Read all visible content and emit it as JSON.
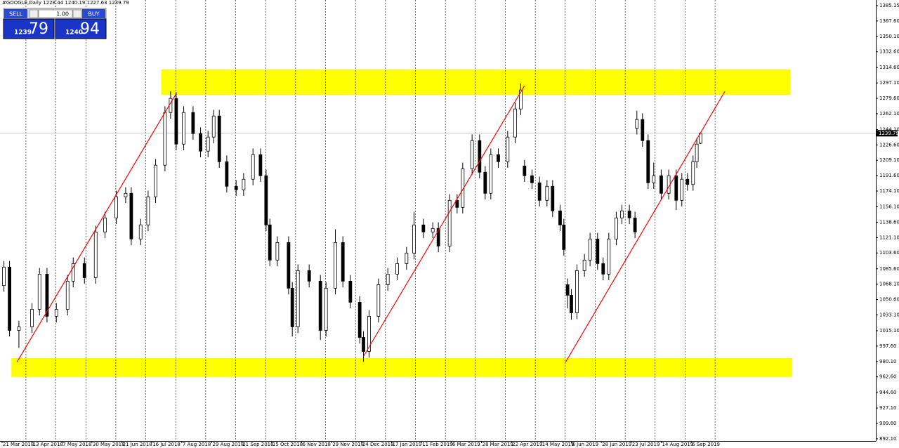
{
  "chart_data": {
    "type": "candlestick",
    "title": "#GOOGLE,Daily",
    "trade_panel": {
      "sell_label": "SELL",
      "buy_label": "BUY",
      "lots": "1.00",
      "sell_price_main": "1239",
      "sell_price_pips": "79",
      "buy_price_main": "1240",
      "buy_price_pips": "94"
    },
    "xlim": [
      -1.1,
      466.6
    ],
    "ylim": [
      888.0,
      1391.5
    ],
    "xticks": [
      {
        "value": 0,
        "label": "21 Mar 2018"
      },
      {
        "value": 16,
        "label": "13 Apr 2018"
      },
      {
        "value": 32,
        "label": "7 May 2018"
      },
      {
        "value": 48,
        "label": "30 May 2018"
      },
      {
        "value": 64,
        "label": "21 Jun 2018"
      },
      {
        "value": 80,
        "label": "16 Jul 2018"
      },
      {
        "value": 96,
        "label": "7 Aug 2018"
      },
      {
        "value": 112,
        "label": "29 Aug 2018"
      },
      {
        "value": 128,
        "label": "21 Sep 2018"
      },
      {
        "value": 144,
        "label": "15 Oct 2018"
      },
      {
        "value": 160,
        "label": "6 Nov 2018"
      },
      {
        "value": 176,
        "label": "29 Nov 2018"
      },
      {
        "value": 192,
        "label": "24 Dec 2018"
      },
      {
        "value": 208,
        "label": "17 Jan 2019"
      },
      {
        "value": 224,
        "label": "11 Feb 2019"
      },
      {
        "value": 240,
        "label": "6 Mar 2019"
      },
      {
        "value": 256,
        "label": "28 Mar 2019"
      },
      {
        "value": 272,
        "label": "22 Apr 2019"
      },
      {
        "value": 288,
        "label": "14 May 2019"
      },
      {
        "value": 304,
        "label": "6 Jun 2019"
      },
      {
        "value": 320,
        "label": "28 Jun 2019"
      },
      {
        "value": 336,
        "label": "23 Jul 2019"
      },
      {
        "value": 352,
        "label": "14 Aug 2019"
      },
      {
        "value": 368,
        "label": "6 Sep 2019"
      }
    ],
    "yticks": [
      1385.15,
      {
        "value": 1367.6,
        "label": "1367.60"
      },
      {
        "value": 1350.1,
        "label": "1350.10"
      },
      {
        "value": 1332.6,
        "label": "1332.60"
      },
      {
        "value": 1314.6,
        "label": "1314.60"
      },
      {
        "value": 1297.1,
        "label": "1297.10"
      },
      {
        "value": 1279.6,
        "label": "1279.60"
      },
      {
        "value": 1262.1,
        "label": "1262.10"
      },
      {
        "value": 1244.1,
        "label": "1244.10"
      },
      {
        "value": 1226.6,
        "label": "1226.60"
      },
      {
        "value": 1209.1,
        "label": "1209.10"
      },
      {
        "value": 1191.6,
        "label": "1191.60"
      },
      {
        "value": 1174.1,
        "label": "1174.10"
      },
      {
        "value": 1156.1,
        "label": "1156.10"
      },
      {
        "value": 1138.6,
        "label": "1138.60"
      },
      {
        "value": 1121.1,
        "label": "1121.10"
      },
      {
        "value": 1103.6,
        "label": "1103.60"
      },
      {
        "value": 1085.6,
        "label": "1085.60"
      },
      {
        "value": 1068.1,
        "label": "1068.10"
      },
      {
        "value": 1050.6,
        "label": "1050.60"
      },
      {
        "value": 1033.1,
        "label": "1033.10"
      },
      {
        "value": 1015.1,
        "label": "1015.10"
      },
      {
        "value": 997.6,
        "label": "997.60"
      },
      {
        "value": 980.1,
        "label": "980.10"
      },
      {
        "value": 962.6,
        "label": "962.60"
      },
      {
        "value": 944.6,
        "label": "944.60"
      },
      {
        "value": 927.1,
        "label": "927.10"
      },
      {
        "value": 909.6,
        "label": "909.60"
      },
      {
        "value": 892.1,
        "label": "892.10"
      }
    ],
    "grid": true,
    "up_color": "#ffffff",
    "down_color": "#000000",
    "zone_color": "#ffff00",
    "trendline_color": "#ff0000",
    "zones": [
      {
        "from": 85,
        "to": 421,
        "low": 1283.6,
        "high": 1312.4
      },
      {
        "from": 5,
        "to": 422,
        "low": 962.5,
        "high": 984.0
      }
    ],
    "trendlines": [
      {
        "x1": 8,
        "y1": 979.5,
        "x2": 93,
        "y2": 1285.1
      },
      {
        "x1": 193,
        "y1": 985.9,
        "x2": 279,
        "y2": 1293.9
      },
      {
        "x1": 301,
        "y1": 979.5,
        "x2": 386,
        "y2": 1287.5
      }
    ],
    "candles": [
      {
        "x": 1,
        "open": 1066.5,
        "high": 1094.5,
        "low": 1059.5,
        "close": 1087.5
      },
      {
        "x": 4,
        "open": 1087.5,
        "high": 1094.5,
        "low": 1008.5,
        "close": 1015.5
      },
      {
        "x": 9,
        "open": 1015.5,
        "high": 1026.5,
        "low": 995.5,
        "close": 1019.5
      },
      {
        "x": 16,
        "open": 1019.5,
        "high": 1046.5,
        "low": 1012.5,
        "close": 1039.5
      },
      {
        "x": 20,
        "open": 1039.5,
        "high": 1086.5,
        "low": 1032.5,
        "close": 1079.5
      },
      {
        "x": 24,
        "open": 1079.5,
        "high": 1086.5,
        "low": 1024.5,
        "close": 1031.5
      },
      {
        "x": 29,
        "open": 1031.5,
        "high": 1046.5,
        "low": 1024.5,
        "close": 1039.5
      },
      {
        "x": 35,
        "open": 1039.5,
        "high": 1078.5,
        "low": 1032.5,
        "close": 1071.5
      },
      {
        "x": 38,
        "open": 1071.5,
        "high": 1098.5,
        "low": 1064.5,
        "close": 1091.5
      },
      {
        "x": 44,
        "open": 1091.5,
        "high": 1098.5,
        "low": 1068.5,
        "close": 1075.5
      },
      {
        "x": 50,
        "open": 1075.5,
        "high": 1134.5,
        "low": 1068.5,
        "close": 1127.5
      },
      {
        "x": 55,
        "open": 1127.5,
        "high": 1150.5,
        "low": 1120.5,
        "close": 1143.5
      },
      {
        "x": 61,
        "open": 1143.5,
        "high": 1174.5,
        "low": 1136.5,
        "close": 1167.5
      },
      {
        "x": 66,
        "open": 1167.5,
        "high": 1178.5,
        "low": 1160.5,
        "close": 1171.5
      },
      {
        "x": 69,
        "open": 1171.5,
        "high": 1178.5,
        "low": 1112.5,
        "close": 1119.5
      },
      {
        "x": 74,
        "open": 1119.5,
        "high": 1142.5,
        "low": 1112.5,
        "close": 1135.5
      },
      {
        "x": 78,
        "open": 1135.5,
        "high": 1174.5,
        "low": 1128.5,
        "close": 1167.5
      },
      {
        "x": 82,
        "open": 1167.5,
        "high": 1210.5,
        "low": 1160.5,
        "close": 1203.5
      },
      {
        "x": 87,
        "open": 1203.5,
        "high": 1270.5,
        "low": 1196.5,
        "close": 1263.5
      },
      {
        "x": 90,
        "open": 1263.5,
        "high": 1287.5,
        "low": 1256.5,
        "close": 1279.5
      },
      {
        "x": 93,
        "open": 1279.5,
        "high": 1286.5,
        "low": 1220.5,
        "close": 1227.5
      },
      {
        "x": 97,
        "open": 1227.5,
        "high": 1270.5,
        "low": 1220.5,
        "close": 1263.5
      },
      {
        "x": 102,
        "open": 1263.5,
        "high": 1270.5,
        "low": 1232.5,
        "close": 1239.5
      },
      {
        "x": 106,
        "open": 1239.5,
        "high": 1246.5,
        "low": 1212.5,
        "close": 1219.5
      },
      {
        "x": 110,
        "open": 1219.5,
        "high": 1242.5,
        "low": 1212.5,
        "close": 1235.5
      },
      {
        "x": 113,
        "open": 1235.5,
        "high": 1266.5,
        "low": 1228.5,
        "close": 1259.5
      },
      {
        "x": 116,
        "open": 1259.5,
        "high": 1266.5,
        "low": 1200.5,
        "close": 1207.5
      },
      {
        "x": 120,
        "open": 1207.5,
        "high": 1214.5,
        "low": 1172.5,
        "close": 1179.5
      },
      {
        "x": 125,
        "open": 1179.5,
        "high": 1186.5,
        "low": 1168.5,
        "close": 1175.5
      },
      {
        "x": 129,
        "open": 1175.5,
        "high": 1194.5,
        "low": 1168.5,
        "close": 1187.5
      },
      {
        "x": 134,
        "open": 1187.5,
        "high": 1222.5,
        "low": 1180.5,
        "close": 1215.5
      },
      {
        "x": 138,
        "open": 1215.5,
        "high": 1222.5,
        "low": 1184.5,
        "close": 1191.5
      },
      {
        "x": 141,
        "open": 1191.5,
        "high": 1198.5,
        "low": 1128.5,
        "close": 1135.5
      },
      {
        "x": 143,
        "open": 1135.5,
        "high": 1142.5,
        "low": 1088.5,
        "close": 1095.5
      },
      {
        "x": 147,
        "open": 1095.5,
        "high": 1122.5,
        "low": 1088.5,
        "close": 1115.5
      },
      {
        "x": 153,
        "open": 1115.5,
        "high": 1122.5,
        "low": 1056.5,
        "close": 1063.5
      },
      {
        "x": 155,
        "open": 1063.5,
        "high": 1070.5,
        "low": 1008.5,
        "close": 1019.5
      },
      {
        "x": 158,
        "open": 1019.5,
        "high": 1090.5,
        "low": 1012.5,
        "close": 1083.5
      },
      {
        "x": 164,
        "open": 1083.5,
        "high": 1090.5,
        "low": 1064.5,
        "close": 1071.5
      },
      {
        "x": 170,
        "open": 1071.5,
        "high": 1078.5,
        "low": 1004.5,
        "close": 1015.5
      },
      {
        "x": 173,
        "open": 1015.5,
        "high": 1070.5,
        "low": 1008.5,
        "close": 1063.5
      },
      {
        "x": 178,
        "open": 1063.5,
        "high": 1130.5,
        "low": 1056.5,
        "close": 1115.5
      },
      {
        "x": 182,
        "open": 1115.5,
        "high": 1122.5,
        "low": 1064.5,
        "close": 1071.5
      },
      {
        "x": 186,
        "open": 1071.5,
        "high": 1078.5,
        "low": 1040.5,
        "close": 1047.5
      },
      {
        "x": 191,
        "open": 1047.5,
        "high": 1054.5,
        "low": 1000.5,
        "close": 1007.5
      },
      {
        "x": 193,
        "open": 1007.5,
        "high": 1014.5,
        "low": 979.5,
        "close": 991.5
      },
      {
        "x": 196,
        "open": 991.5,
        "high": 1038.5,
        "low": 984.5,
        "close": 1031.5
      },
      {
        "x": 201,
        "open": 1031.5,
        "high": 1074.5,
        "low": 1024.5,
        "close": 1067.5
      },
      {
        "x": 206,
        "open": 1067.5,
        "high": 1086.5,
        "low": 1060.5,
        "close": 1079.5
      },
      {
        "x": 211,
        "open": 1079.5,
        "high": 1098.5,
        "low": 1072.5,
        "close": 1091.5
      },
      {
        "x": 216,
        "open": 1091.5,
        "high": 1110.5,
        "low": 1084.5,
        "close": 1103.5
      },
      {
        "x": 220,
        "open": 1103.5,
        "high": 1150.5,
        "low": 1096.5,
        "close": 1135.5
      },
      {
        "x": 225,
        "open": 1135.5,
        "high": 1142.5,
        "low": 1120.5,
        "close": 1127.5
      },
      {
        "x": 230,
        "open": 1127.5,
        "high": 1138.5,
        "low": 1120.5,
        "close": 1131.5
      },
      {
        "x": 233,
        "open": 1131.5,
        "high": 1138.5,
        "low": 1104.5,
        "close": 1111.5
      },
      {
        "x": 239,
        "open": 1111.5,
        "high": 1170.5,
        "low": 1104.5,
        "close": 1163.5
      },
      {
        "x": 243,
        "open": 1163.5,
        "high": 1170.5,
        "low": 1148.5,
        "close": 1155.5
      },
      {
        "x": 246,
        "open": 1155.5,
        "high": 1206.5,
        "low": 1148.5,
        "close": 1199.5
      },
      {
        "x": 251,
        "open": 1199.5,
        "high": 1238.5,
        "low": 1192.5,
        "close": 1231.5
      },
      {
        "x": 255,
        "open": 1231.5,
        "high": 1238.5,
        "low": 1188.5,
        "close": 1195.5
      },
      {
        "x": 258,
        "open": 1195.5,
        "high": 1202.5,
        "low": 1164.5,
        "close": 1171.5
      },
      {
        "x": 261,
        "open": 1171.5,
        "high": 1222.5,
        "low": 1164.5,
        "close": 1215.5
      },
      {
        "x": 265,
        "open": 1215.5,
        "high": 1222.5,
        "low": 1200.5,
        "close": 1207.5
      },
      {
        "x": 270,
        "open": 1207.5,
        "high": 1242.5,
        "low": 1200.5,
        "close": 1235.5
      },
      {
        "x": 274,
        "open": 1235.5,
        "high": 1274.5,
        "low": 1228.5,
        "close": 1267.5
      },
      {
        "x": 277,
        "open": 1267.5,
        "high": 1296.5,
        "low": 1260.5,
        "close": 1289.1
      },
      {
        "x": 279,
        "open": 1202.5,
        "high": 1209.5,
        "low": 1184.5,
        "close": 1191.5
      },
      {
        "x": 283,
        "open": 1191.5,
        "high": 1198.5,
        "low": 1176.5,
        "close": 1183.5
      },
      {
        "x": 287,
        "open": 1183.5,
        "high": 1190.5,
        "low": 1156.5,
        "close": 1163.5
      },
      {
        "x": 291,
        "open": 1163.5,
        "high": 1186.5,
        "low": 1156.5,
        "close": 1179.5
      },
      {
        "x": 294,
        "open": 1179.5,
        "high": 1186.5,
        "low": 1144.5,
        "close": 1151.5
      },
      {
        "x": 298,
        "open": 1151.5,
        "high": 1158.5,
        "low": 1128.5,
        "close": 1135.5
      },
      {
        "x": 300,
        "open": 1135.5,
        "high": 1142.5,
        "low": 1100.5,
        "close": 1107.5
      },
      {
        "x": 302,
        "open": 1067.5,
        "high": 1074.5,
        "low": 1040.5,
        "close": 1055.5
      },
      {
        "x": 304,
        "open": 1055.5,
        "high": 1062.5,
        "low": 1027.5,
        "close": 1035.5
      },
      {
        "x": 307,
        "open": 1035.5,
        "high": 1090.5,
        "low": 1028.5,
        "close": 1083.5
      },
      {
        "x": 311,
        "open": 1083.5,
        "high": 1102.5,
        "low": 1076.5,
        "close": 1095.5
      },
      {
        "x": 314,
        "open": 1095.5,
        "high": 1126.5,
        "low": 1088.5,
        "close": 1119.5
      },
      {
        "x": 318,
        "open": 1119.5,
        "high": 1126.5,
        "low": 1084.5,
        "close": 1091.5
      },
      {
        "x": 321,
        "open": 1091.5,
        "high": 1098.5,
        "low": 1072.5,
        "close": 1079.5
      },
      {
        "x": 324,
        "open": 1079.5,
        "high": 1126.5,
        "low": 1072.5,
        "close": 1119.5
      },
      {
        "x": 328,
        "open": 1119.5,
        "high": 1150.5,
        "low": 1112.5,
        "close": 1143.5
      },
      {
        "x": 331,
        "open": 1143.5,
        "high": 1158.5,
        "low": 1136.5,
        "close": 1151.5
      },
      {
        "x": 335,
        "open": 1151.5,
        "high": 1158.5,
        "low": 1136.5,
        "close": 1143.5
      },
      {
        "x": 338,
        "open": 1143.5,
        "high": 1150.5,
        "low": 1120.5,
        "close": 1127.5
      },
      {
        "x": 339,
        "open": 1245.5,
        "high": 1265.5,
        "low": 1238.5,
        "close": 1255.5
      },
      {
        "x": 342,
        "open": 1255.5,
        "high": 1262.5,
        "low": 1224.5,
        "close": 1231.5
      },
      {
        "x": 345,
        "open": 1231.5,
        "high": 1238.5,
        "low": 1176.5,
        "close": 1183.5
      },
      {
        "x": 348,
        "open": 1183.5,
        "high": 1206.5,
        "low": 1176.5,
        "close": 1191.5
      },
      {
        "x": 352,
        "open": 1191.5,
        "high": 1198.5,
        "low": 1164.5,
        "close": 1171.5
      },
      {
        "x": 356,
        "open": 1171.5,
        "high": 1198.5,
        "low": 1164.5,
        "close": 1191.5
      },
      {
        "x": 360,
        "open": 1191.5,
        "high": 1198.5,
        "low": 1152.5,
        "close": 1163.5
      },
      {
        "x": 363,
        "open": 1163.5,
        "high": 1194.5,
        "low": 1156.5,
        "close": 1187.5
      },
      {
        "x": 366,
        "open": 1187.5,
        "high": 1194.5,
        "low": 1174.5,
        "close": 1181.5
      },
      {
        "x": 369,
        "open": 1181.5,
        "high": 1214.5,
        "low": 1174.5,
        "close": 1207.5
      },
      {
        "x": 371,
        "open": 1207.5,
        "high": 1234.5,
        "low": 1200.5,
        "close": 1227.5
      },
      {
        "x": 373,
        "open": 1228.44,
        "high": 1240.19,
        "low": 1227.63,
        "close": 1239.79
      }
    ]
  }
}
